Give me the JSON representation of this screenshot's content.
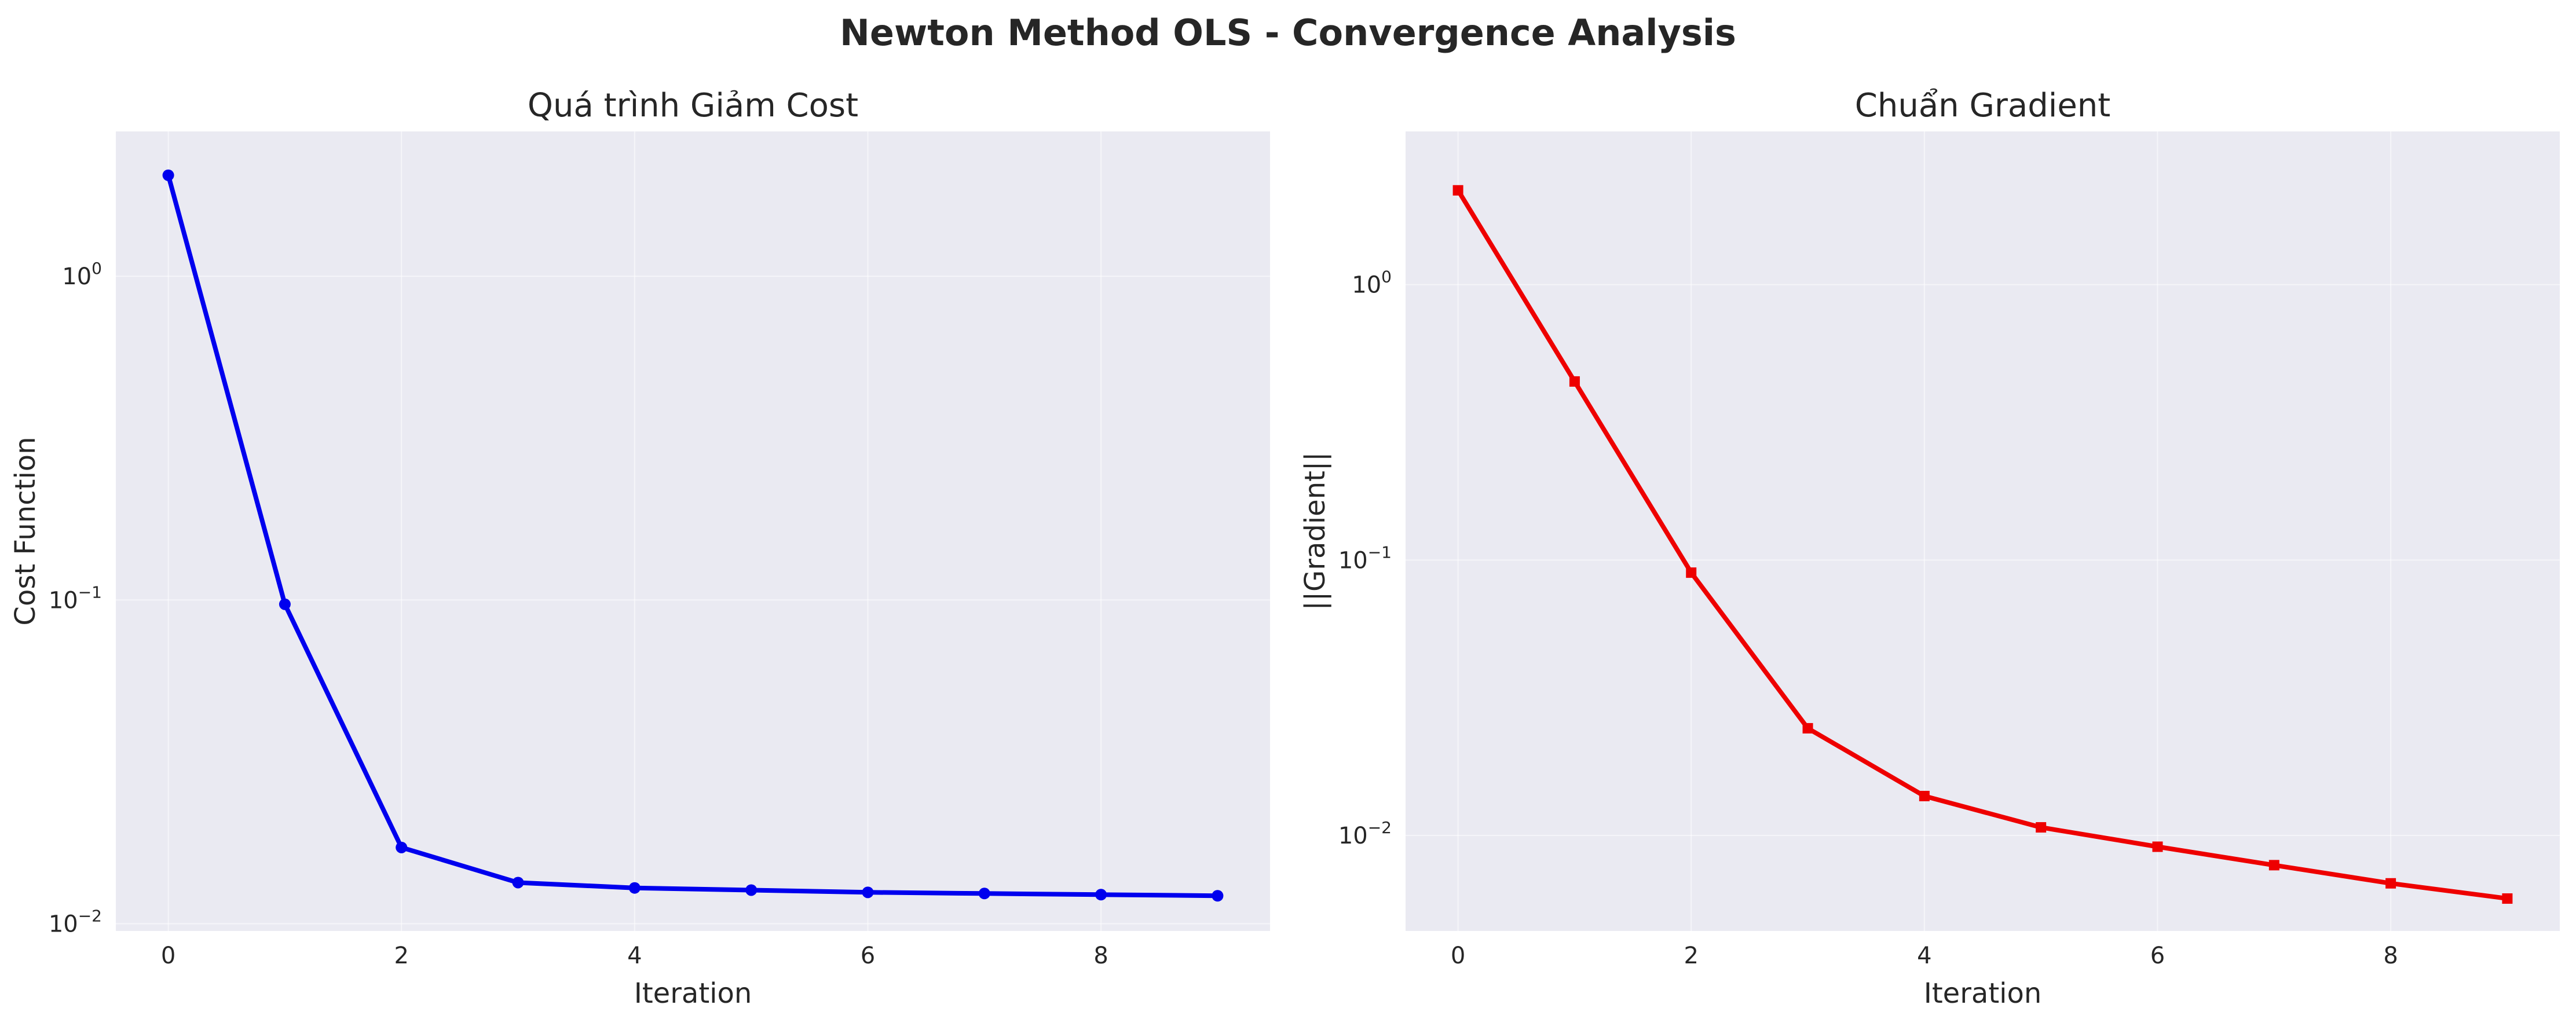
{
  "figure": {
    "title": "Newton Method OLS - Convergence Analysis"
  },
  "chart_data": [
    {
      "type": "line",
      "title": "Quá trình Giảm Cost",
      "xlabel": "Iteration",
      "ylabel": "Cost Function",
      "yscale": "log",
      "xlim": [
        -0.45,
        9.45
      ],
      "ylim": [
        0.0095,
        2.8
      ],
      "grid": true,
      "xticks": [
        0,
        2,
        4,
        6,
        8
      ],
      "yticks": [
        {
          "value": 1,
          "label": "10",
          "exponent": "0"
        },
        {
          "value": 0.1,
          "label": "10",
          "exponent": "−1"
        },
        {
          "value": 0.01,
          "label": "10",
          "exponent": "−2"
        }
      ],
      "series": [
        {
          "color": "#0000ee",
          "marker": "circle",
          "x": [
            0,
            1,
            2,
            3,
            4,
            5,
            6,
            7,
            8,
            9
          ],
          "y": [
            2.05,
            0.097,
            0.0172,
            0.0134,
            0.0129,
            0.0127,
            0.0125,
            0.0124,
            0.0123,
            0.0122
          ]
        }
      ]
    },
    {
      "type": "line",
      "title": "Chuẩn Gradient",
      "xlabel": "Iteration",
      "ylabel": "||Gradient||",
      "yscale": "log",
      "xlim": [
        -0.45,
        9.45
      ],
      "ylim": [
        0.0045,
        3.6
      ],
      "grid": true,
      "xticks": [
        0,
        2,
        4,
        6,
        8
      ],
      "yticks": [
        {
          "value": 1,
          "label": "10",
          "exponent": "0"
        },
        {
          "value": 0.1,
          "label": "10",
          "exponent": "−1"
        },
        {
          "value": 0.01,
          "label": "10",
          "exponent": "−2"
        }
      ],
      "series": [
        {
          "color": "#ee0000",
          "marker": "square",
          "x": [
            0,
            1,
            2,
            3,
            4,
            5,
            6,
            7,
            8,
            9
          ],
          "y": [
            2.2,
            0.445,
            0.09,
            0.0245,
            0.0139,
            0.0107,
            0.0091,
            0.0078,
            0.0067,
            0.0059
          ]
        }
      ]
    }
  ]
}
